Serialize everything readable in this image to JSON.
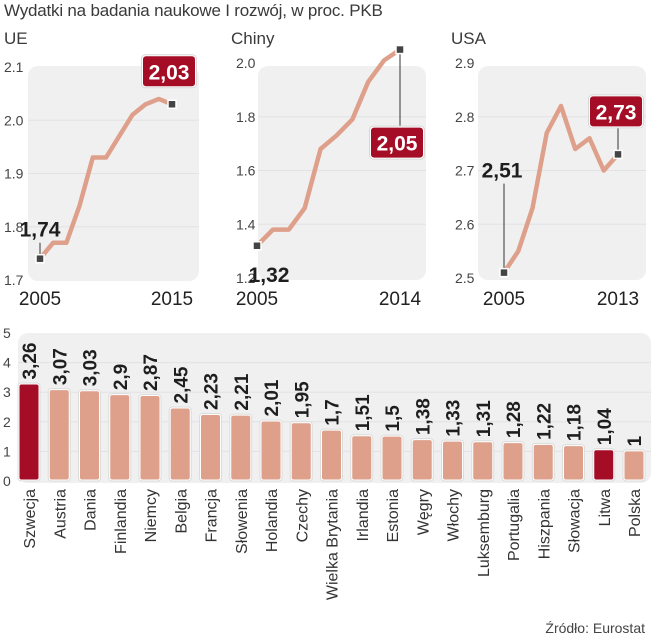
{
  "title": "Wydatki na badania naukowe I rozwój, w proc. PKB",
  "source": "Źródło: Eurostat",
  "colors": {
    "line": "#dea08a",
    "bar": "#dea08a",
    "highlight": "#a50d27",
    "panel_bg": "#f0f0f1",
    "grid": "#e2e2e4",
    "marker": "#444444"
  },
  "chart_data": [
    {
      "type": "line",
      "panel": "ue",
      "title": "UE",
      "x": [
        2005,
        2006,
        2007,
        2008,
        2009,
        2010,
        2011,
        2012,
        2013,
        2014,
        2015
      ],
      "series": [
        {
          "name": "UE",
          "values": [
            1.74,
            1.77,
            1.77,
            1.84,
            1.93,
            1.93,
            1.97,
            2.01,
            2.03,
            2.04,
            2.03
          ]
        }
      ],
      "ylim": [
        1.7,
        2.1
      ],
      "yticks": [
        "1.7",
        "1.8",
        "1.9",
        "2.0",
        "2.1"
      ],
      "xtick_labels": [
        "2005",
        "2015"
      ],
      "annotations": [
        {
          "label": "1,74",
          "point_index": 0,
          "style": "plain"
        },
        {
          "label": "2,03",
          "point_index": 10,
          "style": "badge"
        }
      ],
      "grid": true
    },
    {
      "type": "line",
      "panel": "chiny",
      "title": "Chiny",
      "x": [
        2005,
        2006,
        2007,
        2008,
        2009,
        2010,
        2011,
        2012,
        2013,
        2014
      ],
      "series": [
        {
          "name": "Chiny",
          "values": [
            1.32,
            1.38,
            1.38,
            1.46,
            1.68,
            1.73,
            1.79,
            1.93,
            2.01,
            2.05
          ]
        }
      ],
      "ylim": [
        1.2,
        2.0
      ],
      "yticks": [
        "1.2",
        "1.4",
        "1.6",
        "1.8",
        "2.0"
      ],
      "xtick_labels": [
        "2005",
        "2014"
      ],
      "annotations": [
        {
          "label": "1,32",
          "point_index": 0,
          "style": "plain"
        },
        {
          "label": "2,05",
          "point_index": 9,
          "style": "badge"
        }
      ],
      "grid": true
    },
    {
      "type": "line",
      "panel": "usa",
      "title": "USA",
      "x": [
        2005,
        2006,
        2007,
        2008,
        2009,
        2010,
        2011,
        2012,
        2013
      ],
      "series": [
        {
          "name": "USA",
          "values": [
            2.51,
            2.55,
            2.63,
            2.77,
            2.82,
            2.74,
            2.76,
            2.7,
            2.73
          ]
        }
      ],
      "ylim": [
        2.5,
        2.9
      ],
      "yticks": [
        "2.5",
        "2.6",
        "2.7",
        "2.8",
        "2.9"
      ],
      "xtick_labels": [
        "2005",
        "2013"
      ],
      "annotations": [
        {
          "label": "2,51",
          "point_index": 0,
          "style": "plain"
        },
        {
          "label": "2,73",
          "point_index": 8,
          "style": "badge"
        }
      ],
      "grid": true
    },
    {
      "type": "bar",
      "panel": "countries",
      "title": "",
      "categories": [
        "Szwecja",
        "Austria",
        "Dania",
        "Finlandia",
        "Niemcy",
        "Belgia",
        "Francja",
        "Słowenia",
        "Holandia",
        "Czechy",
        "Wielka Brytania",
        "Irlandia",
        "Estonia",
        "Węgry",
        "Włochy",
        "Luksemburg",
        "Portugalia",
        "Hiszpania",
        "Słowacja",
        "Litwa",
        "Polska"
      ],
      "values": [
        3.26,
        3.07,
        3.03,
        2.9,
        2.87,
        2.45,
        2.23,
        2.21,
        2.01,
        1.95,
        1.7,
        1.51,
        1.5,
        1.38,
        1.33,
        1.31,
        1.28,
        1.22,
        1.18,
        1.04,
        1
      ],
      "value_labels": [
        "3,26",
        "3,07",
        "3,03",
        "2,9",
        "2,87",
        "2,45",
        "2,23",
        "2,21",
        "2,01",
        "1,95",
        "1,7",
        "1,51",
        "1,5",
        "1,38",
        "1,33",
        "1,31",
        "1,28",
        "1,22",
        "1,18",
        "1,04",
        "1"
      ],
      "highlighted": [
        "Szwecja",
        "Litwa"
      ],
      "ylim": [
        0,
        5
      ],
      "yticks": [
        "0",
        "1",
        "2",
        "3",
        "4",
        "5"
      ],
      "grid": true
    }
  ]
}
